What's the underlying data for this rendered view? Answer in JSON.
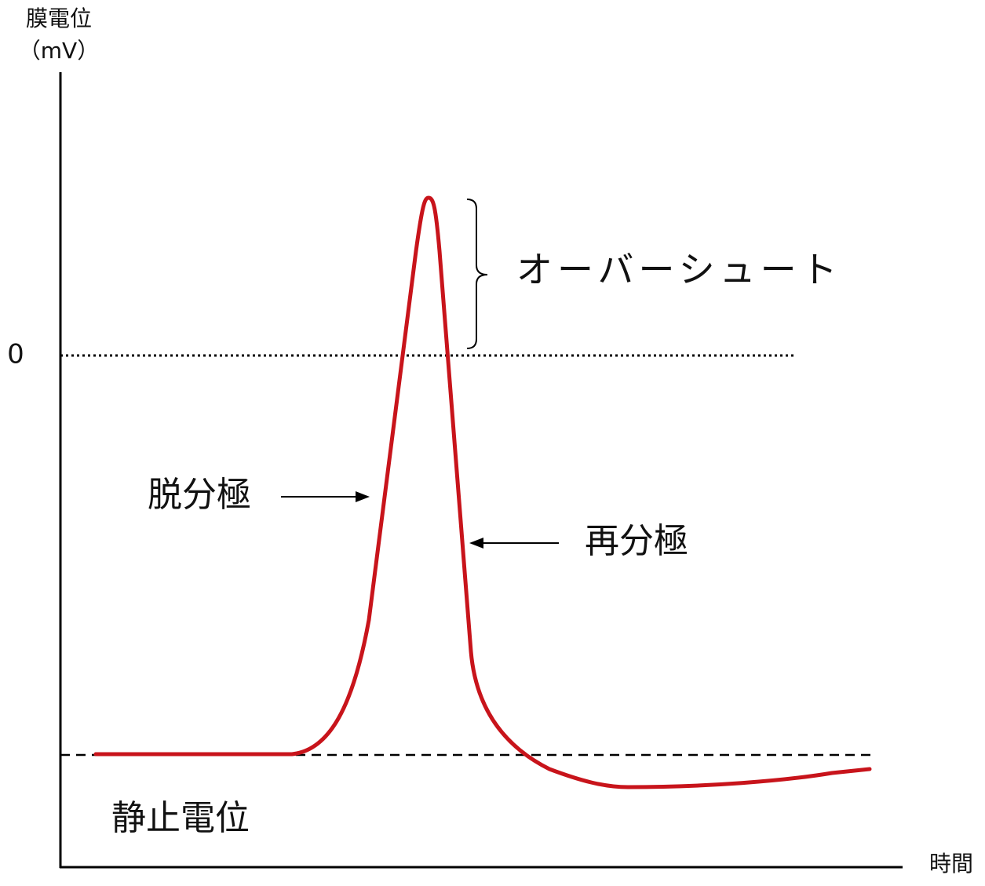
{
  "axes": {
    "y_label": "膜電位",
    "y_unit": "（mV）",
    "zero_tick": "0",
    "x_label": "時間"
  },
  "annotations": {
    "overshoot": "オーバーシュート",
    "depolarization": "脱分極",
    "repolarization": "再分極",
    "resting_potential": "静止電位"
  }
}
